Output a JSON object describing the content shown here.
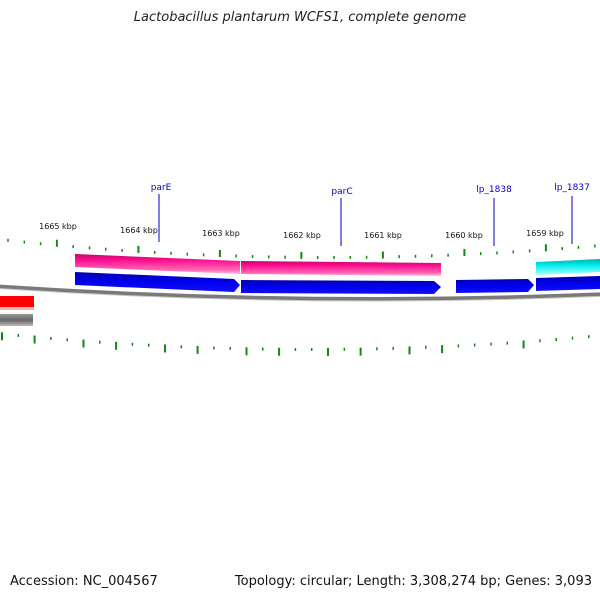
{
  "title": "Lactobacillus plantarum WCFS1, complete genome",
  "footer": {
    "accession": "Accession: NC_004567",
    "info": "Topology: circular; Length: 3,308,274 bp; Genes: 3,093"
  },
  "kbp_labels": [
    "1665 kbp",
    "1664 kbp",
    "1663 kbp",
    "1662 kbp",
    "1661 kbp",
    "1660 kbp",
    "1659 kbp"
  ],
  "genes": [
    {
      "name": "parE"
    },
    {
      "name": "parC"
    },
    {
      "name": "lp_1838"
    },
    {
      "name": "lp_1837"
    }
  ],
  "colors": {
    "cog_pink": "#ff1493",
    "cog_cyan": "#00e5e5",
    "cds_blue": "#0000e0",
    "backbone_gray": "#777777",
    "tick_green": "#118811",
    "label_blue": "#0000c8",
    "other_red": "#ff0000",
    "other_gray": "#555555"
  }
}
